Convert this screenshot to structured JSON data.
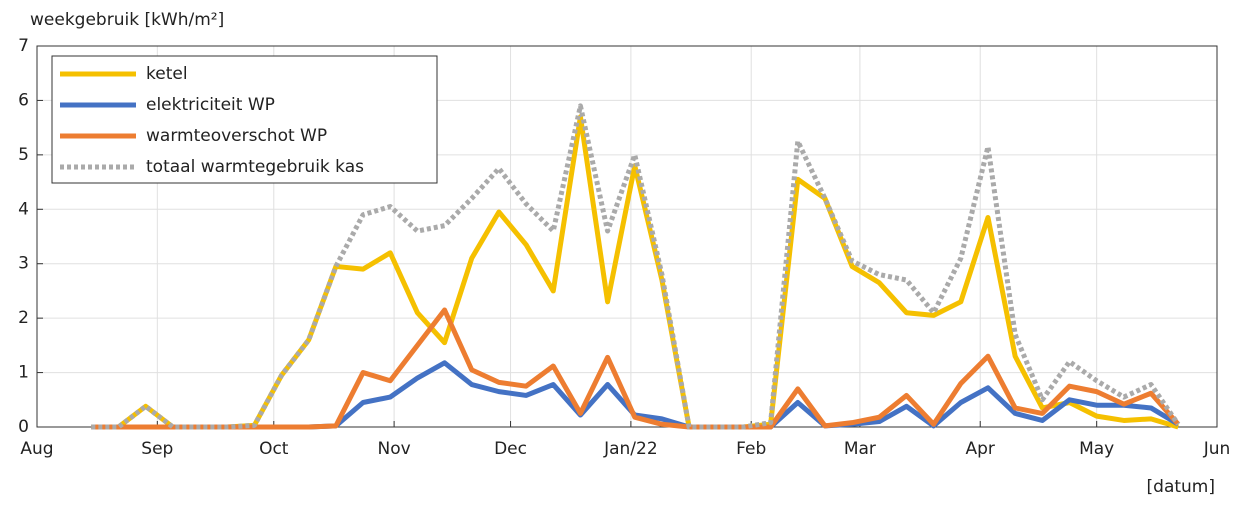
{
  "chart_data": {
    "type": "line",
    "ylabel": "weekgebruik [kWh/m²]",
    "xlabel": "[datum]",
    "x": [
      14,
      21,
      28,
      35,
      42,
      49,
      56,
      63,
      70,
      77,
      84,
      91,
      98,
      105,
      112,
      119,
      126,
      133,
      140,
      147,
      154,
      161,
      168,
      175,
      182,
      189,
      196,
      203,
      210,
      217,
      224,
      231,
      238,
      245,
      252,
      259,
      266,
      273,
      280,
      287,
      294
    ],
    "xlim": [
      0,
      304
    ],
    "xticks": [
      {
        "value": 0,
        "label": "Aug"
      },
      {
        "value": 31,
        "label": "Sep"
      },
      {
        "value": 61,
        "label": "Oct"
      },
      {
        "value": 92,
        "label": "Nov"
      },
      {
        "value": 122,
        "label": "Dec"
      },
      {
        "value": 153,
        "label": "Jan/22"
      },
      {
        "value": 184,
        "label": "Feb"
      },
      {
        "value": 212,
        "label": "Mar"
      },
      {
        "value": 243,
        "label": "Apr"
      },
      {
        "value": 273,
        "label": "May"
      },
      {
        "value": 304,
        "label": "Jun"
      }
    ],
    "ylim": [
      0,
      7
    ],
    "yticks": [
      0,
      1,
      2,
      3,
      4,
      5,
      6,
      7
    ],
    "grid": true,
    "legend": "upper left",
    "series": [
      {
        "name": "ketel",
        "color": "#f5c000",
        "values": [
          0,
          0,
          0.38,
          0,
          0,
          0,
          0.03,
          0.95,
          1.6,
          2.95,
          2.9,
          3.2,
          2.1,
          1.55,
          3.1,
          3.95,
          3.35,
          2.5,
          5.7,
          2.3,
          4.8,
          2.7,
          0,
          0,
          0,
          0.05,
          4.55,
          4.2,
          2.95,
          2.65,
          2.1,
          2.05,
          2.3,
          3.85,
          1.3,
          0.35,
          0.45,
          0.2,
          0.12,
          0.15,
          0
        ]
      },
      {
        "name": "elektriciteit WP",
        "color": "#4472c4",
        "values": [
          0,
          0,
          0,
          0,
          0,
          0,
          0,
          0,
          0,
          0.02,
          0.45,
          0.55,
          0.9,
          1.18,
          0.78,
          0.65,
          0.58,
          0.78,
          0.22,
          0.78,
          0.22,
          0.15,
          0,
          0,
          0,
          0,
          0.45,
          0.02,
          0.05,
          0.1,
          0.38,
          0.02,
          0.45,
          0.72,
          0.25,
          0.12,
          0.5,
          0.4,
          0.4,
          0.35,
          0.05
        ]
      },
      {
        "name": "warmteoverschot WP",
        "color": "#ed7d31",
        "values": [
          0,
          0,
          0,
          0,
          0,
          0,
          0,
          0,
          0,
          0.02,
          1.0,
          0.85,
          1.5,
          2.15,
          1.05,
          0.82,
          0.75,
          1.12,
          0.25,
          1.28,
          0.18,
          0.05,
          0,
          0,
          0,
          0,
          0.7,
          0.02,
          0.08,
          0.18,
          0.58,
          0.05,
          0.8,
          1.3,
          0.35,
          0.25,
          0.75,
          0.65,
          0.42,
          0.62,
          0.05
        ]
      },
      {
        "name": "totaal warmtegebruik kas",
        "color": "#aaaaaa",
        "dashed": true,
        "values": [
          0,
          0,
          0.38,
          0,
          0,
          0,
          0.03,
          0.95,
          1.6,
          2.95,
          3.9,
          4.05,
          3.6,
          3.7,
          4.2,
          4.75,
          4.1,
          3.6,
          5.9,
          3.6,
          5.0,
          2.8,
          0,
          0,
          0,
          0.08,
          5.25,
          4.2,
          3.05,
          2.8,
          2.7,
          2.1,
          3.1,
          5.15,
          1.7,
          0.5,
          1.2,
          0.85,
          0.55,
          0.78,
          0.05
        ]
      }
    ]
  }
}
